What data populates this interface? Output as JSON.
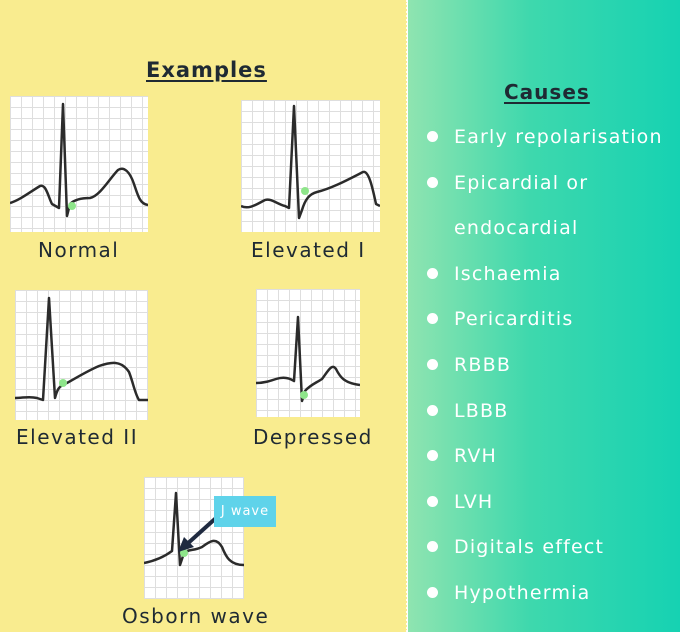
{
  "examples_title": "Examples",
  "causes_title": "Causes",
  "examples": [
    {
      "label": "Normal"
    },
    {
      "label": "Elevated I"
    },
    {
      "label": "Elevated II"
    },
    {
      "label": "Depressed"
    },
    {
      "label": "Osborn wave"
    }
  ],
  "callout_label": "J wave",
  "causes": [
    "Early repolarisation",
    "Epicardial or",
    "endocardial",
    "Ischaemia",
    "Pericarditis",
    "RBBB",
    "LBBB",
    "RVH",
    "LVH",
    "Digitals effect",
    "Hypothermia"
  ],
  "colors": {
    "left_background": "#f9ec8f",
    "right_gradient_start": "#8fe4b0",
    "right_gradient_end": "#16d2b2",
    "trace": "#2b2b2b",
    "j_point_marker": "#8ee58a",
    "callout": "#5fd3ea"
  }
}
